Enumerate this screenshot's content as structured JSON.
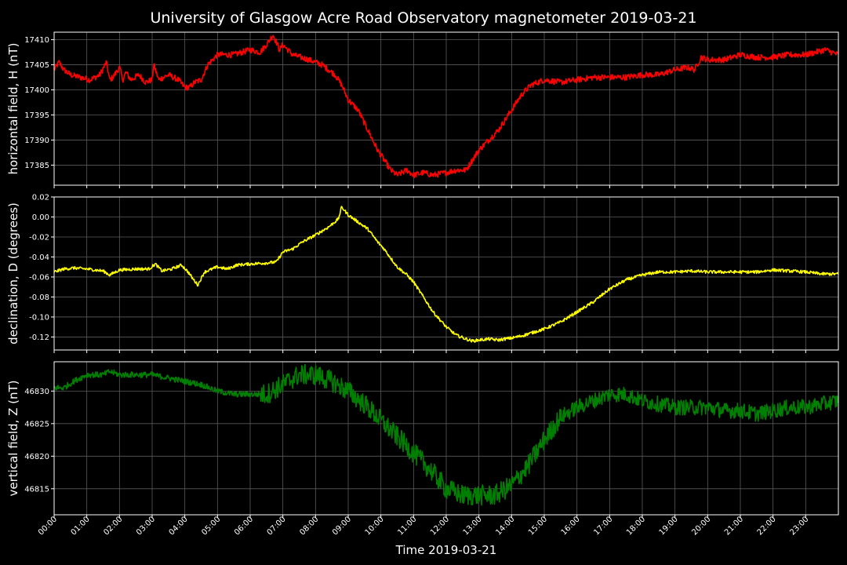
{
  "chart_data": {
    "type": "line",
    "title": "University of Glasgow Acre Road Observatory magnetometer 2019-03-21",
    "xlabel": "Time 2019-03-21",
    "x_ticks": [
      "00:00",
      "01:00",
      "02:00",
      "03:00",
      "04:00",
      "05:00",
      "06:00",
      "07:00",
      "08:00",
      "09:00",
      "10:00",
      "11:00",
      "12:00",
      "13:00",
      "14:00",
      "15:00",
      "16:00",
      "17:00",
      "18:00",
      "19:00",
      "20:00",
      "21:00",
      "22:00",
      "23:00"
    ],
    "xlim": [
      0,
      24
    ],
    "grid": true,
    "panels": [
      {
        "name": "horizontal",
        "ylabel": "horizontal field, H (nT)",
        "color": "#ff0000",
        "ylim": [
          17381,
          17411.5
        ],
        "yticks": [
          17385,
          17390,
          17395,
          17400,
          17405,
          17410
        ],
        "ytick_labels": [
          "17385",
          "17390",
          "17395",
          "17400",
          "17405",
          "17410"
        ],
        "noise": 0.6,
        "x": [
          0,
          0.15,
          0.3,
          0.5,
          0.8,
          1.1,
          1.4,
          1.6,
          1.7,
          1.8,
          2.0,
          2.1,
          2.2,
          2.35,
          2.6,
          2.8,
          3.0,
          3.05,
          3.2,
          3.5,
          3.8,
          4.0,
          4.15,
          4.3,
          4.5,
          4.7,
          5.0,
          5.5,
          6.0,
          6.3,
          6.5,
          6.7,
          6.9,
          7.0,
          7.3,
          7.8,
          8.2,
          8.6,
          8.8,
          9.0,
          9.3,
          9.6,
          9.9,
          10.1,
          10.3,
          10.5,
          10.8,
          11.0,
          11.3,
          11.6,
          12.0,
          12.3,
          12.6,
          12.8,
          13.0,
          13.3,
          13.6,
          14.0,
          14.3,
          14.6,
          15.0,
          15.5,
          16.0,
          16.5,
          17.0,
          17.5,
          18.0,
          18.5,
          19.0,
          19.4,
          19.6,
          19.8,
          20.0,
          20.5,
          21.0,
          21.5,
          22.0,
          22.5,
          23.0,
          23.3,
          23.6,
          24.0
        ],
        "y": [
          17404,
          17405.5,
          17404,
          17403,
          17402.5,
          17402,
          17403,
          17405.5,
          17402,
          17402.5,
          17404.5,
          17402,
          17403.5,
          17402,
          17403,
          17401.5,
          17402,
          17405,
          17402,
          17403,
          17402,
          17400.5,
          17400.5,
          17401.5,
          17402,
          17405,
          17407,
          17407,
          17408,
          17407.5,
          17409,
          17411,
          17408,
          17409,
          17407,
          17406,
          17405,
          17403,
          17401,
          17398,
          17396,
          17392,
          17388,
          17386,
          17384,
          17383,
          17384,
          17383,
          17383.5,
          17383,
          17383.5,
          17384,
          17384,
          17386,
          17388,
          17390,
          17392,
          17396,
          17399,
          17401,
          17402,
          17401.5,
          17402,
          17402.5,
          17402.5,
          17402.5,
          17403,
          17403,
          17404,
          17404.5,
          17404,
          17406.5,
          17406,
          17406,
          17407,
          17406.5,
          17406.5,
          17407,
          17407,
          17407.5,
          17408,
          17407
        ]
      },
      {
        "name": "declination",
        "ylabel": "declination, D (degrees)",
        "color": "#ffff00",
        "ylim": [
          -0.133,
          0.02
        ],
        "yticks": [
          -0.12,
          -0.1,
          -0.08,
          -0.06,
          -0.04,
          -0.02,
          0.0,
          0.02
        ],
        "ytick_labels": [
          "-0.12",
          "-0.10",
          "-0.08",
          "-0.06",
          "-0.04",
          "-0.02",
          "0.00",
          "0.02"
        ],
        "noise": 0.0015,
        "x": [
          0,
          0.3,
          0.6,
          1.0,
          1.5,
          1.7,
          2.0,
          2.5,
          2.9,
          3.1,
          3.3,
          3.6,
          3.9,
          4.1,
          4.25,
          4.4,
          4.6,
          5.0,
          5.3,
          5.6,
          6.0,
          6.5,
          6.8,
          7.0,
          7.3,
          7.6,
          8.0,
          8.4,
          8.7,
          8.8,
          9.0,
          9.3,
          9.6,
          9.9,
          10.1,
          10.5,
          10.8,
          11.0,
          11.3,
          11.6,
          12.0,
          12.3,
          12.6,
          12.8,
          13.0,
          13.3,
          13.6,
          14.0,
          14.3,
          14.6,
          15.0,
          15.5,
          16.0,
          16.5,
          17.0,
          17.5,
          18.0,
          18.5,
          19.0,
          19.5,
          20.0,
          20.5,
          21.0,
          21.5,
          22.0,
          22.5,
          23.0,
          23.5,
          24.0
        ],
        "y": [
          -0.055,
          -0.052,
          -0.051,
          -0.052,
          -0.054,
          -0.058,
          -0.053,
          -0.052,
          -0.052,
          -0.047,
          -0.054,
          -0.052,
          -0.048,
          -0.055,
          -0.062,
          -0.068,
          -0.055,
          -0.05,
          -0.052,
          -0.048,
          -0.047,
          -0.046,
          -0.045,
          -0.035,
          -0.032,
          -0.025,
          -0.018,
          -0.01,
          -0.002,
          0.01,
          0.002,
          -0.005,
          -0.012,
          -0.025,
          -0.032,
          -0.05,
          -0.058,
          -0.065,
          -0.08,
          -0.095,
          -0.11,
          -0.118,
          -0.122,
          -0.124,
          -0.123,
          -0.122,
          -0.123,
          -0.121,
          -0.119,
          -0.116,
          -0.112,
          -0.105,
          -0.095,
          -0.085,
          -0.072,
          -0.063,
          -0.058,
          -0.055,
          -0.055,
          -0.054,
          -0.055,
          -0.055,
          -0.055,
          -0.055,
          -0.053,
          -0.054,
          -0.055,
          -0.057,
          -0.057
        ]
      },
      {
        "name": "vertical",
        "ylabel": "vertical field, Z (nT)",
        "color": "#008000",
        "ylim": [
          46811,
          46834.5
        ],
        "yticks": [
          46815,
          46820,
          46825,
          46830
        ],
        "ytick_labels": [
          "46815",
          "46820",
          "46825",
          "46830"
        ],
        "noise": 0.45,
        "noise_segments": [
          [
            0,
            6.3,
            0.45
          ],
          [
            6.3,
            15.5,
            1.6
          ],
          [
            15.5,
            24,
            1.2
          ]
        ],
        "x": [
          0,
          0.3,
          0.6,
          1.0,
          1.5,
          1.7,
          2.0,
          2.5,
          3.0,
          3.5,
          4.0,
          4.5,
          5.0,
          5.5,
          6.0,
          6.5,
          7.0,
          7.5,
          8.0,
          8.5,
          9.0,
          9.5,
          10.0,
          10.5,
          11.0,
          11.5,
          12.0,
          12.5,
          13.0,
          13.5,
          14.0,
          14.5,
          15.0,
          15.5,
          16.0,
          16.5,
          17.0,
          17.5,
          18.0,
          18.5,
          19.0,
          19.5,
          20.0,
          20.5,
          21.0,
          21.5,
          22.0,
          22.5,
          23.0,
          23.5,
          24.0
        ],
        "y": [
          46830.5,
          46830.5,
          46831.5,
          46832.5,
          46832.5,
          46833,
          46832.5,
          46832.5,
          46832.5,
          46832,
          46831.5,
          46831,
          46830,
          46829.5,
          46829.5,
          46829.5,
          46831,
          46832.5,
          46832.5,
          46831.5,
          46830,
          46828,
          46825.5,
          46823,
          46820.5,
          46818,
          46815,
          46814,
          46814,
          46814,
          46815.5,
          46818.5,
          46822.5,
          46826,
          46827.5,
          46828.5,
          46829.5,
          46829.5,
          46828.5,
          46828,
          46827.5,
          46827.5,
          46827.5,
          46827,
          46827,
          46826.5,
          46827,
          46827.5,
          46827.5,
          46828,
          46828.5
        ]
      }
    ]
  }
}
